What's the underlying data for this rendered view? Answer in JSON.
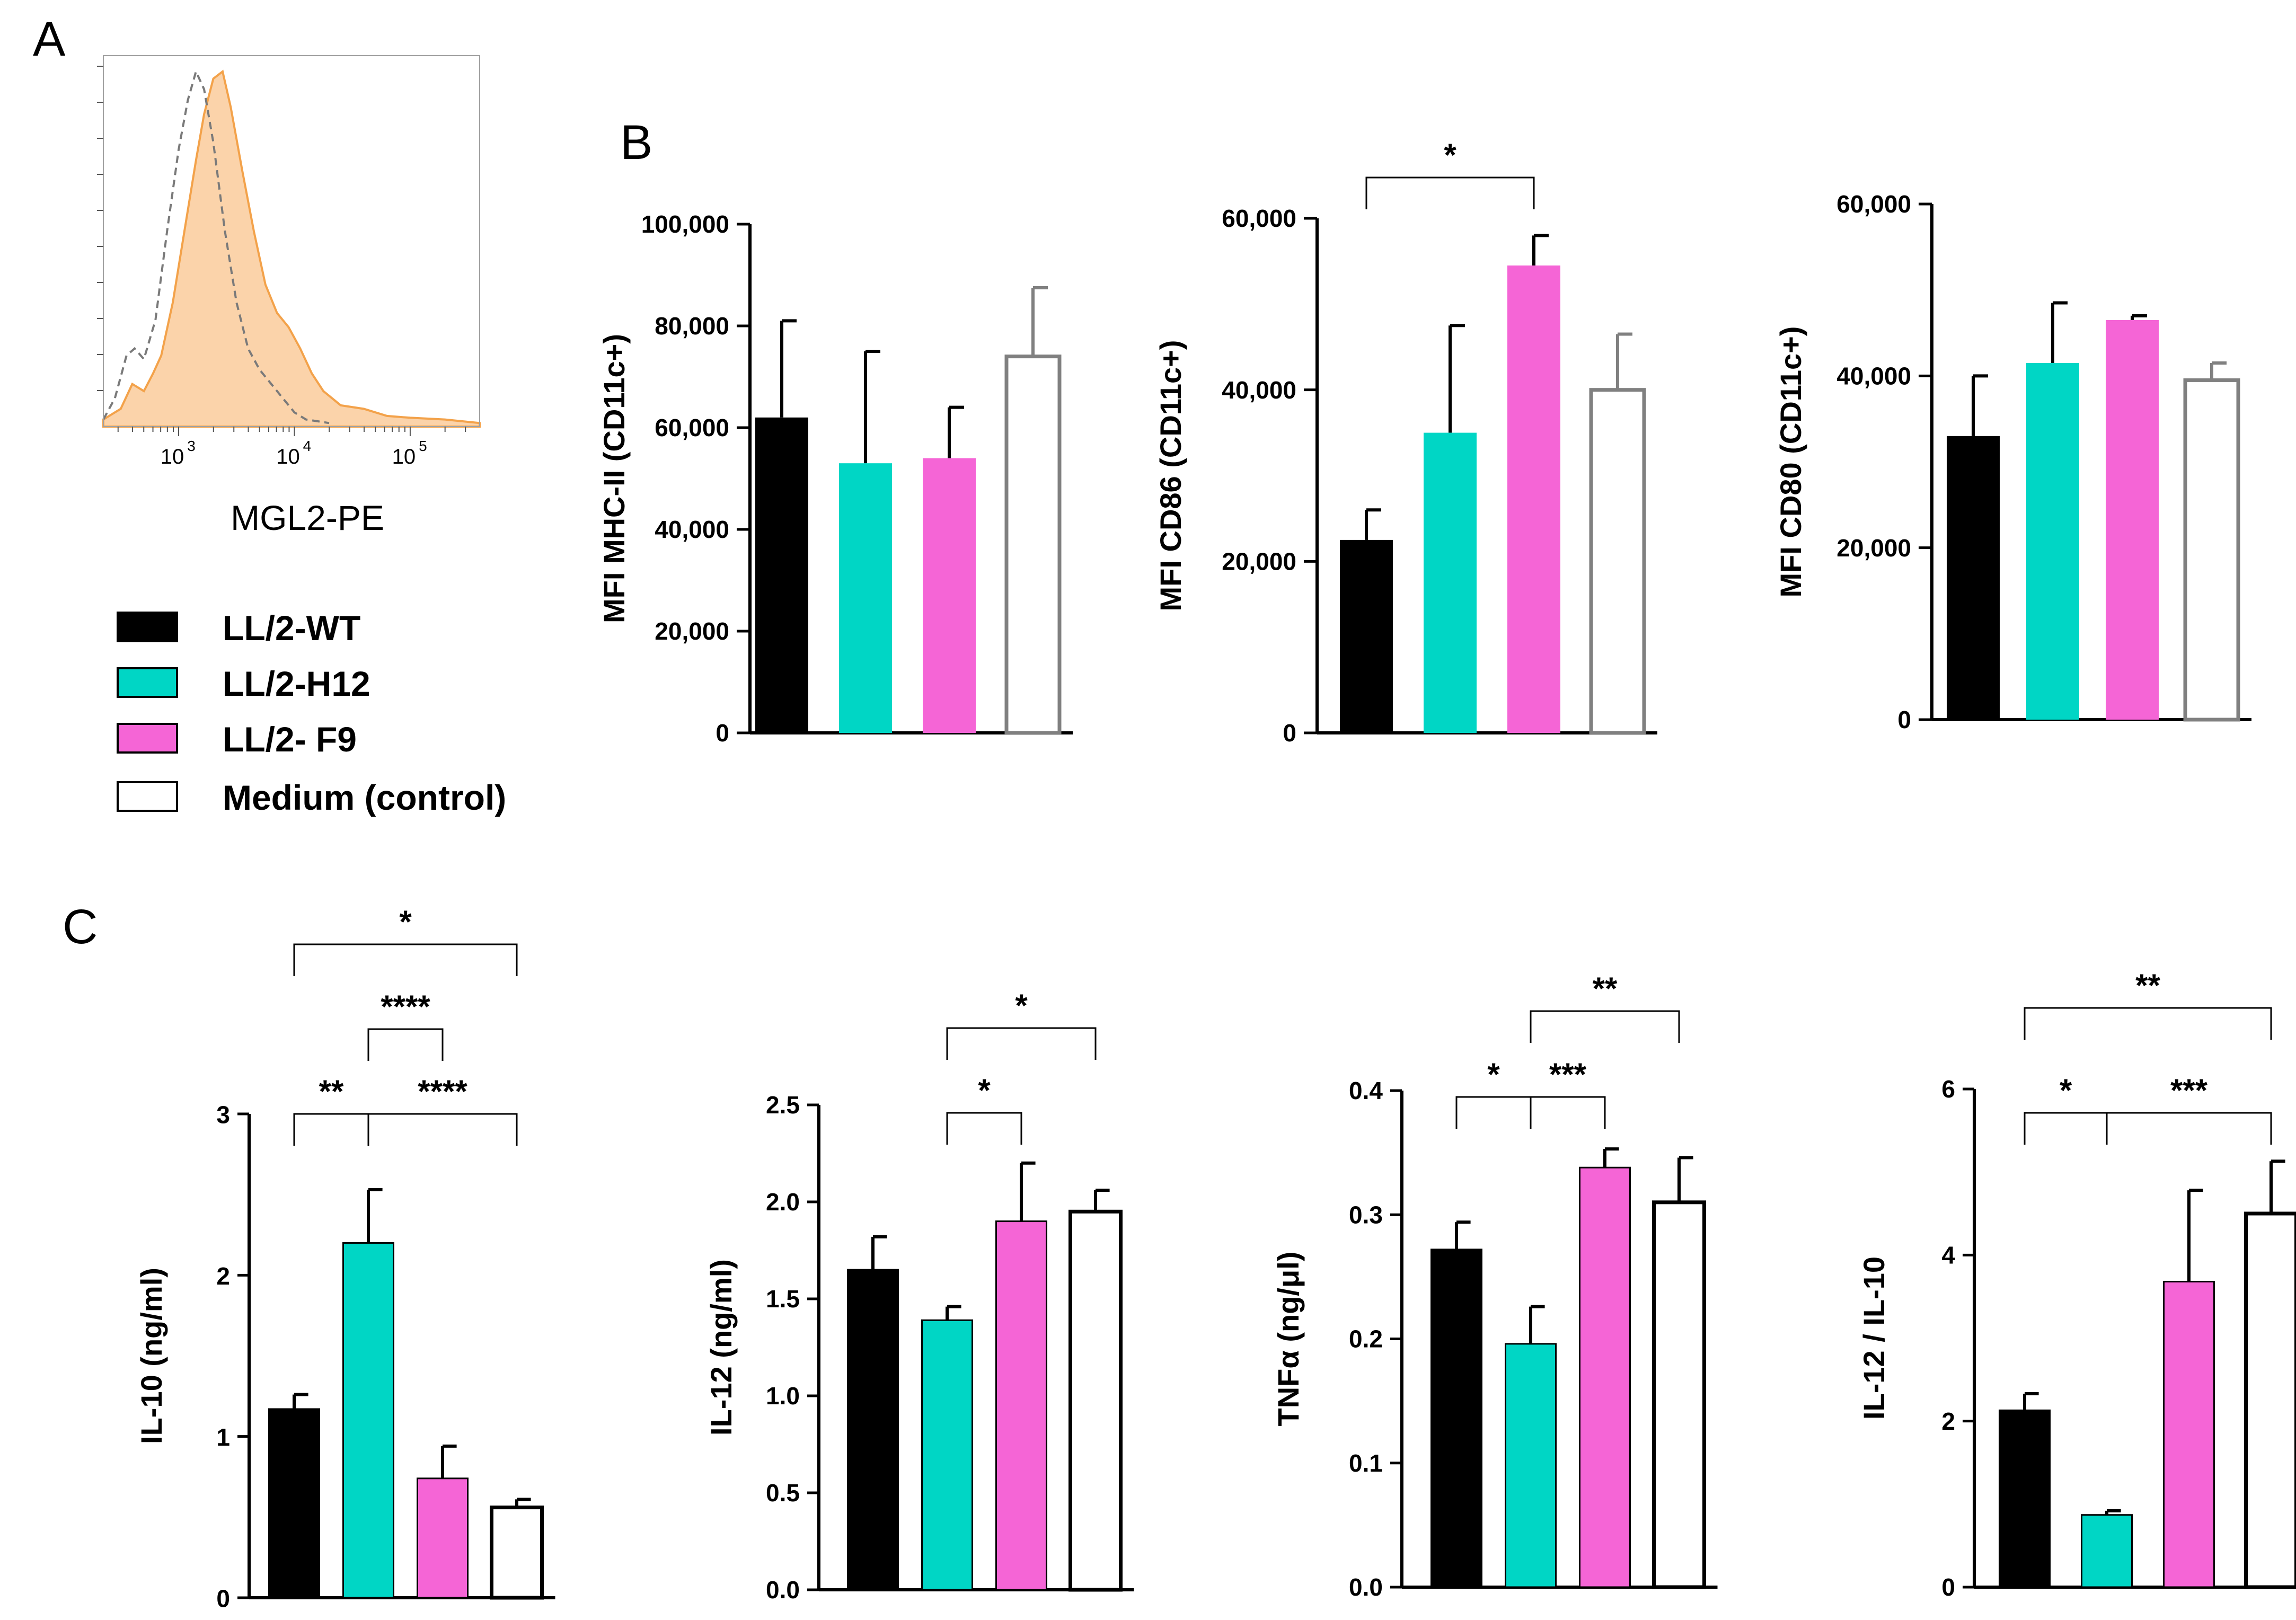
{
  "panel_labels": {
    "a": "A",
    "b": "B",
    "c": "C"
  },
  "colors": {
    "wt": "#000000",
    "h12": "#00d6c5",
    "f9": "#f565d6",
    "medium": "#ffffff",
    "medium_outline_b": "#808080",
    "hist_fill": "#fbd3aa",
    "hist_line": "#f3a24a",
    "hist_dashed": "#7a7a7a"
  },
  "legend": [
    {
      "key": "wt",
      "label": "LL/2-WT"
    },
    {
      "key": "h12",
      "label": "LL/2-H12"
    },
    {
      "key": "f9",
      "label": "LL/2- F9"
    },
    {
      "key": "medium",
      "label": "Medium (control)"
    }
  ],
  "histogram": {
    "xlabel": "MGL2-PE",
    "ticks": [
      {
        "base": "10",
        "exp": "3"
      },
      {
        "base": "10",
        "exp": "4"
      },
      {
        "base": "10",
        "exp": "5"
      }
    ],
    "log_range": [
      2.35,
      5.6
    ],
    "sample_curve": [
      [
        2.35,
        0.02
      ],
      [
        2.5,
        0.05
      ],
      [
        2.6,
        0.12
      ],
      [
        2.7,
        0.1
      ],
      [
        2.78,
        0.15
      ],
      [
        2.85,
        0.2
      ],
      [
        2.95,
        0.35
      ],
      [
        3.05,
        0.55
      ],
      [
        3.15,
        0.75
      ],
      [
        3.22,
        0.88
      ],
      [
        3.3,
        0.98
      ],
      [
        3.38,
        1.0
      ],
      [
        3.45,
        0.9
      ],
      [
        3.55,
        0.72
      ],
      [
        3.65,
        0.55
      ],
      [
        3.75,
        0.4
      ],
      [
        3.85,
        0.32
      ],
      [
        3.95,
        0.28
      ],
      [
        4.05,
        0.22
      ],
      [
        4.15,
        0.15
      ],
      [
        4.25,
        0.1
      ],
      [
        4.4,
        0.06
      ],
      [
        4.6,
        0.05
      ],
      [
        4.8,
        0.03
      ],
      [
        5.0,
        0.025
      ],
      [
        5.3,
        0.02
      ],
      [
        5.6,
        0.01
      ]
    ],
    "control_curve": [
      [
        2.35,
        0.02
      ],
      [
        2.45,
        0.08
      ],
      [
        2.55,
        0.2
      ],
      [
        2.62,
        0.22
      ],
      [
        2.7,
        0.19
      ],
      [
        2.8,
        0.3
      ],
      [
        2.9,
        0.55
      ],
      [
        3.0,
        0.78
      ],
      [
        3.08,
        0.92
      ],
      [
        3.15,
        1.0
      ],
      [
        3.22,
        0.95
      ],
      [
        3.3,
        0.8
      ],
      [
        3.4,
        0.55
      ],
      [
        3.5,
        0.35
      ],
      [
        3.6,
        0.22
      ],
      [
        3.7,
        0.16
      ],
      [
        3.8,
        0.12
      ],
      [
        3.9,
        0.08
      ],
      [
        4.0,
        0.04
      ],
      [
        4.1,
        0.02
      ],
      [
        4.3,
        0.01
      ]
    ]
  },
  "chart_data": [
    {
      "id": "b1",
      "type": "bar",
      "title": "",
      "ylabel": "MFI MHC-II (CD11c+)",
      "categories": [
        "LL/2-WT",
        "LL/2-H12",
        "LL/2- F9",
        "Medium (control)"
      ],
      "values": [
        62000,
        53000,
        54000,
        74000
      ],
      "errors": [
        19000,
        22000,
        10000,
        13500
      ],
      "ylim": [
        0,
        100000
      ],
      "yticks": [
        0,
        20000,
        40000,
        60000,
        80000,
        100000
      ],
      "ytick_labels": [
        "0",
        "20,000",
        "40,000",
        "60,000",
        "80,000",
        "100,000"
      ],
      "significance": []
    },
    {
      "id": "b2",
      "type": "bar",
      "title": "",
      "ylabel": "MFI CD86 (CD11c+)",
      "categories": [
        "LL/2-WT",
        "LL/2-H12",
        "LL/2- F9",
        "Medium (control)"
      ],
      "values": [
        22500,
        35000,
        54500,
        40000
      ],
      "errors": [
        3500,
        12500,
        3500,
        6500
      ],
      "ylim": [
        0,
        60000
      ],
      "yticks": [
        0,
        20000,
        40000,
        60000
      ],
      "ytick_labels": [
        "0",
        "20,000",
        "40,000",
        "60,000"
      ],
      "significance": [
        {
          "from": 0,
          "to": 2,
          "label": "*",
          "level": 0
        }
      ]
    },
    {
      "id": "b3",
      "type": "bar",
      "title": "",
      "ylabel": "MFI CD80 (CD11c+)",
      "categories": [
        "LL/2-WT",
        "LL/2-H12",
        "LL/2- F9",
        "Medium (control)"
      ],
      "values": [
        33000,
        41500,
        46500,
        39500
      ],
      "errors": [
        7000,
        7000,
        500,
        2000
      ],
      "ylim": [
        0,
        60000
      ],
      "yticks": [
        0,
        20000,
        40000,
        60000
      ],
      "ytick_labels": [
        "0",
        "20,000",
        "40,000",
        "60,000"
      ],
      "significance": []
    },
    {
      "id": "c1",
      "type": "bar",
      "title": "",
      "ylabel": "IL-10 (ng/ml)",
      "categories": [
        "LL/2-WT",
        "LL/2-H12",
        "LL/2- F9",
        "Medium (control)"
      ],
      "values": [
        1.17,
        2.2,
        0.74,
        0.56
      ],
      "errors": [
        0.09,
        0.33,
        0.2,
        0.05
      ],
      "ylim": [
        0,
        3
      ],
      "yticks": [
        0,
        1,
        2,
        3
      ],
      "ytick_labels": [
        "0",
        "1",
        "2",
        "3"
      ],
      "significance": [
        {
          "from": 0,
          "to": 1,
          "label": "**",
          "level": 0
        },
        {
          "from": 1,
          "to": 3,
          "label": "****",
          "level": 0
        },
        {
          "from": 1,
          "to": 2,
          "label": "****",
          "level": 1
        },
        {
          "from": 0,
          "to": 3,
          "label": "*",
          "level": 2
        }
      ]
    },
    {
      "id": "c2",
      "type": "bar",
      "title": "",
      "ylabel": "IL-12 (ng/ml)",
      "categories": [
        "LL/2-WT",
        "LL/2-H12",
        "LL/2- F9",
        "Medium (control)"
      ],
      "values": [
        1.65,
        1.39,
        1.9,
        1.95
      ],
      "errors": [
        0.17,
        0.07,
        0.3,
        0.11
      ],
      "ylim": [
        0,
        2.5
      ],
      "yticks": [
        0,
        0.5,
        1.0,
        1.5,
        2.0,
        2.5
      ],
      "ytick_labels": [
        "0.0",
        "0.5",
        "1.0",
        "1.5",
        "2.0",
        "2.5"
      ],
      "significance": [
        {
          "from": 1,
          "to": 2,
          "label": "*",
          "level": 0
        },
        {
          "from": 1,
          "to": 3,
          "label": "*",
          "level": 1
        }
      ]
    },
    {
      "id": "c3",
      "type": "bar",
      "title": "",
      "ylabel": "TNFα (ng/μl)",
      "categories": [
        "LL/2-WT",
        "LL/2-H12",
        "LL/2- F9",
        "Medium (control)"
      ],
      "values": [
        0.272,
        0.196,
        0.338,
        0.31
      ],
      "errors": [
        0.022,
        0.03,
        0.015,
        0.036
      ],
      "ylim": [
        0,
        0.4
      ],
      "yticks": [
        0,
        0.1,
        0.2,
        0.3,
        0.4
      ],
      "ytick_labels": [
        "0.0",
        "0.1",
        "0.2",
        "0.3",
        "0.4"
      ],
      "significance": [
        {
          "from": 0,
          "to": 1,
          "label": "*",
          "level": 0
        },
        {
          "from": 1,
          "to": 2,
          "label": "***",
          "level": 0
        },
        {
          "from": 1,
          "to": 3,
          "label": "**",
          "level": 1
        }
      ]
    },
    {
      "id": "c4",
      "type": "bar",
      "title": "",
      "ylabel": "IL-12 / IL-10",
      "categories": [
        "LL/2-WT",
        "LL/2-H12",
        "LL/2- F9",
        "Medium (control)"
      ],
      "values": [
        2.13,
        0.87,
        3.68,
        4.5
      ],
      "errors": [
        0.2,
        0.05,
        1.1,
        0.63
      ],
      "ylim": [
        0,
        6
      ],
      "yticks": [
        0,
        2,
        4,
        6
      ],
      "ytick_labels": [
        "0",
        "2",
        "4",
        "6"
      ],
      "significance": [
        {
          "from": 0,
          "to": 1,
          "label": "*",
          "level": 0
        },
        {
          "from": 1,
          "to": 3,
          "label": "***",
          "level": 0
        },
        {
          "from": 0,
          "to": 3,
          "label": "**",
          "level": 1
        }
      ]
    }
  ]
}
